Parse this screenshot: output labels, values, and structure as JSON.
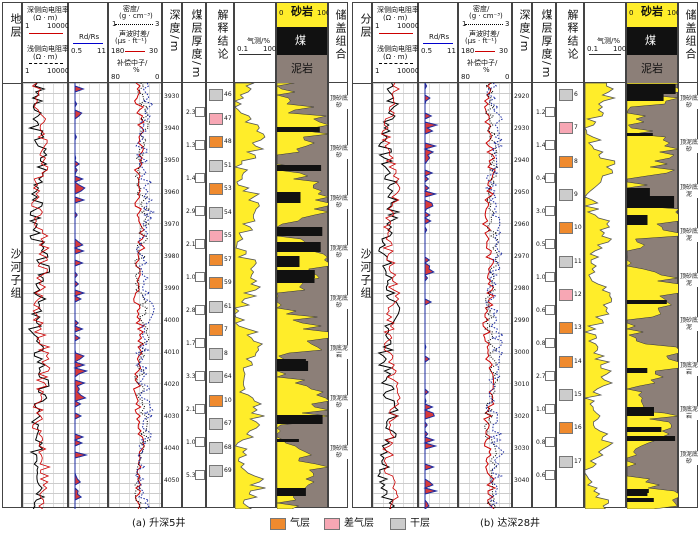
{
  "colors": {
    "gas": "#ef8a2e",
    "poor_gas": "#f7a7b4",
    "dry": "#cccccc",
    "sand": "#ffed2a",
    "coal": "#111111",
    "mud": "#8c7f78"
  },
  "headers": {
    "formation": "地层",
    "formation_b": "分层",
    "deep_res": "深侧向电阻率/",
    "shallow_res": "浅侧向电阻率/",
    "ohm": "(Ω · m)",
    "res_min": "1",
    "res_max": "10000",
    "rd_rs": "Rd/Rs",
    "rd_min": "0.5",
    "rd_max": "11",
    "density": "密度/",
    "density_unit": "(g · cm⁻³)",
    "density_min": "1",
    "density_max": "3",
    "sonic": "声波时差/",
    "sonic_unit": "(μs · ft⁻¹)",
    "sonic_min": "180",
    "sonic_max": "30",
    "neutron": "补偿中子/",
    "neutron_unit": "%",
    "neutron_min": "80",
    "neutron_max": "0",
    "depth": "深度/m",
    "coal_thick": "煤层厚度/m",
    "interp": "解释结论",
    "gas_meas": "气测/%",
    "gas_min": "0.1",
    "gas_max": "100",
    "lith_scale_min": "0",
    "lith_scale_max": "100",
    "sand": "砂岩",
    "coal": "煤",
    "mud": "泥岩",
    "seal": "储盖组合"
  },
  "formation_name": "沙河子组",
  "panel_a": {
    "depth_ticks": [
      "3930",
      "3940",
      "3950",
      "3960",
      "3970",
      "3980",
      "3990",
      "4000",
      "4010",
      "4020",
      "4030",
      "4040",
      "4050"
    ],
    "thick_labels": [
      "2.3",
      "1.3",
      "1.4",
      "2.9",
      "2.1",
      "1.0",
      "2.8",
      "1.7",
      "3.3",
      "2.1",
      "1.0",
      "5.3"
    ],
    "layer_numbers": [
      "46",
      "47",
      "48",
      "51",
      "53",
      "54",
      "55",
      "57",
      "59",
      "61",
      "7",
      "8",
      "64",
      "10",
      "67",
      "68",
      "69"
    ],
    "seal_labels": [
      "顶砂底砂",
      "顶砂底砂",
      "顶砂底砂",
      "顶泥底砂",
      "顶泥底砂",
      "顶底泥岩",
      "顶泥底砂",
      "顶砂底砂"
    ],
    "caption": "(a) 升深5井"
  },
  "panel_b": {
    "depth_ticks": [
      "2920",
      "2930",
      "2940",
      "2950",
      "2960",
      "2970",
      "2980",
      "2990",
      "3000",
      "3010",
      "3020",
      "3030",
      "3040"
    ],
    "thick_labels": [
      "1.2",
      "1.4",
      "0.4",
      "3.0",
      "0.5",
      "1.0",
      "0.6",
      "0.8",
      "2.7",
      "1.0",
      "0.8",
      "0.6"
    ],
    "layer_numbers": [
      "6",
      "7",
      "8",
      "9",
      "10",
      "11",
      "12",
      "13",
      "14",
      "15",
      "16",
      "17"
    ],
    "seal_labels": [
      "顶砂底砂",
      "顶泥底砂",
      "顶砂底泥",
      "顶砂底泥",
      "顶砂底泥",
      "顶砂底泥",
      "顶底泥岩",
      "顶底泥岩",
      "顶泥底砂"
    ],
    "caption": "(b) 达深28井"
  },
  "legend": {
    "gas": "气层",
    "poor_gas": "差气层",
    "dry": "干层"
  }
}
